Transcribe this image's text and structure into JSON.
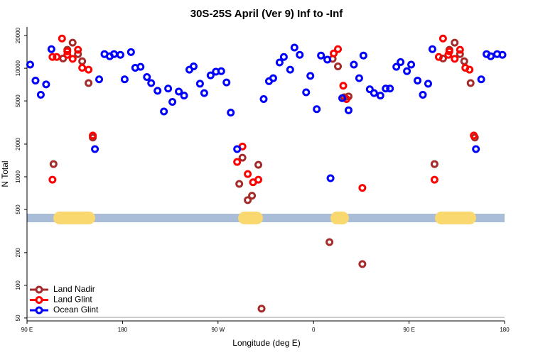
{
  "chart_data": {
    "type": "scatter",
    "title": "30S-25S April (Ver 9)   Inf to -Inf",
    "xlabel": "Longitude (deg E)",
    "ylabel": "N Total",
    "log_y": true,
    "legend": "lower left",
    "xlim": [
      90,
      540
    ],
    "ylim": [
      47,
      24000
    ],
    "xticks": [
      {
        "value": 90,
        "label": "90 E"
      },
      180,
      {
        "value": 270,
        "label": "90 W"
      },
      {
        "value": 360,
        "label": "0"
      },
      {
        "value": 450,
        "label": "90 E"
      },
      {
        "value": 540,
        "label": "180"
      }
    ],
    "yticks": [
      50,
      100,
      200,
      500,
      1000,
      2000,
      5000,
      10000,
      20000
    ],
    "series": [
      {
        "name": "Land Nadir",
        "color": "#a52a2a",
        "x": [
          115,
          124,
          128,
          133,
          138,
          142,
          148,
          152,
          290,
          293,
          298,
          302,
          308,
          311,
          375,
          378,
          383,
          389,
          393,
          406,
          474,
          482,
          488,
          493,
          498,
          502,
          508,
          512
        ],
        "values": [
          1310,
          12300,
          14800,
          17200,
          13500,
          11600,
          7300,
          2300,
          860,
          1500,
          610,
          670,
          1290,
          61,
          250,
          12200,
          10400,
          5400,
          5500,
          157,
          1310,
          12300,
          14800,
          17200,
          13500,
          11600,
          7300,
          2300
        ]
      },
      {
        "name": "Land Glint",
        "color": "#ff0000",
        "x": [
          114,
          118,
          123,
          128,
          128,
          133,
          138,
          142,
          148,
          152,
          114,
          288,
          293,
          298,
          303,
          308,
          379,
          383,
          388,
          391,
          406,
          474,
          478,
          482,
          487,
          488,
          493,
          498,
          503,
          507,
          511
        ],
        "values": [
          12700,
          12700,
          18800,
          13300,
          14300,
          12200,
          14800,
          10100,
          9700,
          2400,
          940,
          1370,
          1900,
          1060,
          890,
          940,
          13700,
          15000,
          6900,
          5200,
          790,
          940,
          12700,
          18800,
          13300,
          14300,
          12200,
          14800,
          10100,
          9700,
          2400
        ]
      },
      {
        "name": "Ocean Glint",
        "color": "#0000ff",
        "x": [
          93,
          98,
          103,
          108,
          113,
          154,
          158,
          163,
          168,
          172,
          178,
          182,
          188,
          192,
          197,
          203,
          207,
          213,
          219,
          223,
          227,
          233,
          238,
          243,
          247,
          253,
          257,
          263,
          268,
          273,
          278,
          282,
          288,
          313,
          318,
          322,
          328,
          332,
          338,
          342,
          347,
          353,
          357,
          363,
          367,
          373,
          376,
          387,
          393,
          398,
          403,
          407,
          413,
          417,
          423,
          428,
          432,
          438,
          442,
          448,
          452,
          458,
          463,
          468,
          472,
          513,
          518,
          523,
          527,
          533,
          538
        ],
        "values": [
          10800,
          7700,
          5700,
          7100,
          15000,
          1800,
          7900,
          13500,
          12900,
          13500,
          13300,
          7900,
          14100,
          10100,
          10300,
          8300,
          7300,
          6200,
          4000,
          6500,
          4900,
          6100,
          5600,
          9700,
          10400,
          7200,
          5900,
          8600,
          9300,
          9400,
          7400,
          3900,
          1800,
          5200,
          7600,
          8100,
          11300,
          12700,
          9700,
          15500,
          13300,
          6000,
          8500,
          4200,
          13100,
          12000,
          970,
          5300,
          4100,
          10800,
          8100,
          13100,
          6400,
          5900,
          5600,
          6500,
          6500,
          10300,
          11400,
          9400,
          10800,
          7700,
          5700,
          7200,
          15000,
          1800,
          7900,
          13500,
          12900,
          13500,
          13300
        ]
      }
    ]
  }
}
